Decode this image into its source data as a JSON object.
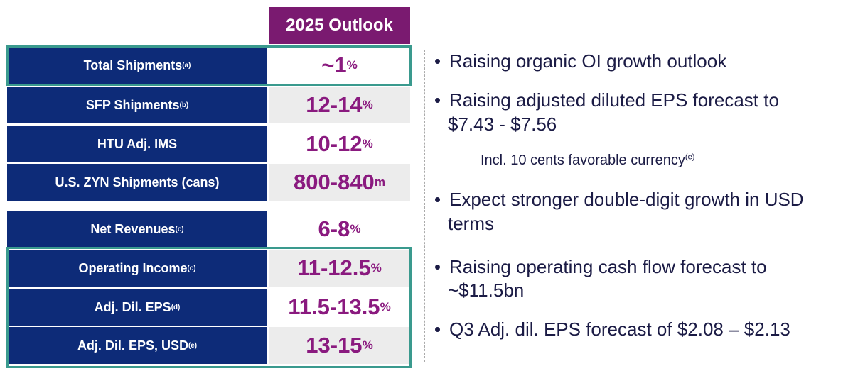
{
  "table": {
    "header": "2025 Outlook",
    "rows": [
      {
        "label": "Total Shipments",
        "note": "(a)",
        "value": "~1",
        "unit": "%"
      },
      {
        "label": "SFP Shipments",
        "note": "(b)",
        "value": "12-14",
        "unit": "%"
      },
      {
        "label": "HTU Adj. IMS",
        "value": "10-12",
        "unit": "%"
      },
      {
        "label": "U.S. ZYN Shipments (cans)",
        "value": "800-840",
        "unit": "m"
      },
      {
        "label": "Net Revenues",
        "note": "(c)",
        "value": "6-8",
        "unit": "%"
      },
      {
        "label": "Operating Income",
        "note": "(c)",
        "value": "11-12.5",
        "unit": "%"
      },
      {
        "label": "Adj. Dil. EPS",
        "note": "(d)",
        "value": "11.5-13.5",
        "unit": "%"
      },
      {
        "label": "Adj. Dil. EPS, USD",
        "note": "(e)",
        "value": "13-15",
        "unit": "%"
      }
    ]
  },
  "bullets": [
    {
      "lines": [
        "Raising organic OI growth outlook"
      ]
    },
    {
      "lines": [
        "Raising adjusted diluted EPS forecast to",
        "$7.43 - $7.56"
      ],
      "sub": {
        "text": "Incl. 10 cents favorable currency",
        "note": "(e)"
      }
    },
    {
      "lines": [
        "Expect stronger double-digit growth in USD",
        "terms"
      ]
    },
    {
      "lines": [
        "Raising operating cash flow forecast to",
        "~$11.5bn"
      ]
    },
    {
      "lines": [
        "Q3 Adj. dil. EPS forecast of $2.08 – $2.13"
      ]
    }
  ]
}
